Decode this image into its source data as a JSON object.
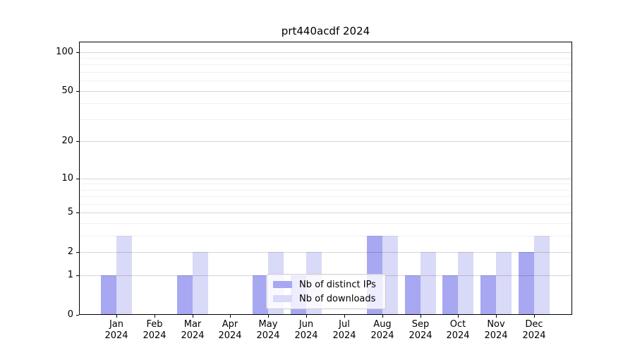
{
  "title": "prt440acdf 2024",
  "chart_data": {
    "type": "bar",
    "title": "prt440acdf 2024",
    "categories": [
      "Jan",
      "Feb",
      "Mar",
      "Apr",
      "May",
      "Jun",
      "Jul",
      "Aug",
      "Sep",
      "Oct",
      "Nov",
      "Dec"
    ],
    "x_sublabel": "2024",
    "series": [
      {
        "name": "Nb of distinct IPs",
        "color": "#a7a7f2",
        "values": [
          1,
          0,
          1,
          0,
          1,
          1,
          0,
          3,
          1,
          1,
          1,
          2
        ]
      },
      {
        "name": "Nb of downloads",
        "color": "#d9d9f8",
        "values": [
          3,
          0,
          2,
          0,
          2,
          2,
          0,
          3,
          2,
          2,
          2,
          3
        ]
      }
    ],
    "yscale": "log1p",
    "ylim": [
      0,
      120
    ],
    "yticks": [
      0,
      1,
      2,
      5,
      10,
      20,
      50,
      100
    ],
    "yticks_minor": [
      3,
      4,
      6,
      7,
      8,
      9,
      30,
      40,
      60,
      70,
      80,
      90
    ],
    "grid": true,
    "legend_position": "inside-bottom-center",
    "colors": {
      "spine": "#000000",
      "grid_major": "#d6d6d6",
      "grid_minor": "#efefef",
      "text": "#000000"
    }
  }
}
